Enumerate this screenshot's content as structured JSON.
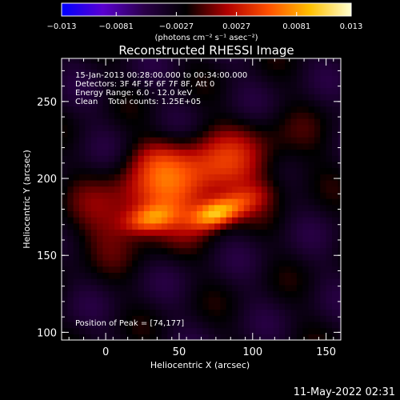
{
  "chart_data": {
    "type": "heatmap",
    "title": "Reconstructed RHESSI Image",
    "xlabel": "Heliocentric X (arcsec)",
    "ylabel": "Heliocentric Y (arcsec)",
    "xlim": [
      -30,
      160
    ],
    "ylim": [
      95,
      278
    ],
    "xticks": [
      0,
      50,
      100,
      150
    ],
    "yticks": [
      100,
      150,
      200,
      250
    ],
    "colorbar": {
      "min": -0.013,
      "max": 0.013,
      "tick_values": [
        -0.013,
        -0.0081,
        -0.0027,
        0.0027,
        0.0081,
        0.013
      ],
      "tick_labels": [
        "−0.013",
        "−0.0081",
        "−0.0027",
        "0.0027",
        "0.0081",
        "0.013"
      ],
      "units": "(photons cm⁻² s⁻¹ asec⁻²)",
      "colors": [
        "#0000ff",
        "#5a00d0",
        "#2a0048",
        "#000000",
        "#b00000",
        "#ff5000",
        "#ffc000",
        "#ffffd0"
      ]
    },
    "info_lines": [
      "15-Jan-2013 00:28:00.000 to 00:34:00.000",
      "Detectors: 3F 4F 5F 6F 7F 8F, Att 0",
      "Energy Range: 6.0 - 12.0 keV",
      "Clean    Total counts: 1.25E+05"
    ],
    "peak_label": "Position of Peak = [74,177]",
    "peak": [
      74,
      177
    ],
    "sources": [
      {
        "x": 47,
        "y": 188,
        "sx": 52,
        "sy": 20,
        "rot": 18,
        "amp": 0.006
      },
      {
        "x": 60,
        "y": 205,
        "sx": 38,
        "sy": 16,
        "rot": 20,
        "amp": 0.0045
      },
      {
        "x": 30,
        "y": 174,
        "sx": 12,
        "sy": 6,
        "rot": 10,
        "amp": 0.007
      },
      {
        "x": 74,
        "y": 177,
        "sx": 11,
        "sy": 6,
        "rot": 15,
        "amp": 0.008
      },
      {
        "x": 88,
        "y": 183,
        "sx": 16,
        "sy": 6,
        "rot": 20,
        "amp": 0.004
      },
      {
        "x": 35,
        "y": 215,
        "sx": 14,
        "sy": 10,
        "rot": 0,
        "amp": 0.0025
      }
    ],
    "background": -0.0032,
    "dark_ring": {
      "x": 48,
      "y": 195,
      "sx": 70,
      "sy": 35,
      "rot": 18,
      "amp": 0.003
    }
  },
  "footer": {
    "timestamp": "11-May-2022 02:31"
  }
}
